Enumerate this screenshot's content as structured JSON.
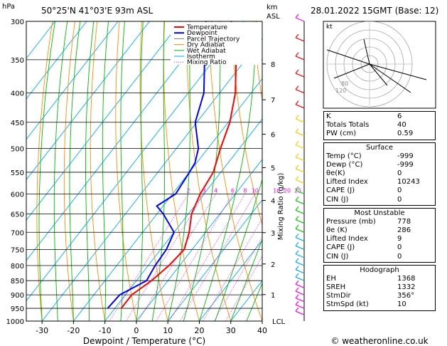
{
  "header": {
    "hpa_unit": "hPa",
    "location": "50°25'N  41°03'E  93m  ASL",
    "km_unit": "km",
    "asl_unit": "ASL",
    "date": "28.01.2022  15GMT  (Base: 12)"
  },
  "legend": [
    {
      "name": "Temperature",
      "color": "#ff0000",
      "style": "solid"
    },
    {
      "name": "Dewpoint",
      "color": "#0000ff",
      "style": "solid"
    },
    {
      "name": "Parcel Trajectory",
      "color": "#808080",
      "style": "solid"
    },
    {
      "name": "Dry Adiabat",
      "color": "#ff8c00",
      "style": "solid"
    },
    {
      "name": "Wet Adiabat",
      "color": "#00bb00",
      "style": "solid"
    },
    {
      "name": "Isotherm",
      "color": "#00aaff",
      "style": "solid"
    },
    {
      "name": "Mixing Ratio",
      "color": "#ff00ff",
      "style": "dotted"
    }
  ],
  "chart_data": {
    "type": "line",
    "title": "",
    "xlabel": "Dewpoint / Temperature (°C)",
    "ylabel": "",
    "right_axis_label": "Mixing Ratio (g/kg)",
    "xlim": [
      -35,
      40
    ],
    "ylim": [
      1000,
      300
    ],
    "y_scale": "log",
    "x_ticks": [
      -30,
      -20,
      -10,
      0,
      10,
      20,
      30,
      40
    ],
    "pressure_ticks": [
      300,
      350,
      400,
      450,
      500,
      550,
      600,
      650,
      700,
      750,
      800,
      850,
      900,
      950,
      1000
    ],
    "km_ticks": [
      {
        "label": "8",
        "p": 356
      },
      {
        "label": "7",
        "p": 411
      },
      {
        "label": "6",
        "p": 472
      },
      {
        "label": "5",
        "p": 540
      },
      {
        "label": "4",
        "p": 616
      },
      {
        "label": "3",
        "p": 701
      },
      {
        "label": "2",
        "p": 795
      },
      {
        "label": "1",
        "p": 899
      }
    ],
    "lcl": {
      "label": "LCL",
      "p": 1000
    },
    "mixing_ratio_labels": [
      "2",
      "3",
      "4",
      "6",
      "8",
      "10",
      "16",
      "20",
      "25"
    ],
    "mixing_ratio_label_p": 600,
    "series": [
      {
        "name": "Temperature",
        "color": "#ff0000",
        "points": [
          [
            -8.0,
            950
          ],
          [
            -8.0,
            900
          ],
          [
            -5.2,
            850
          ],
          [
            -3.4,
            800
          ],
          [
            -2.5,
            750
          ],
          [
            -5.2,
            700
          ],
          [
            -9.0,
            650
          ],
          [
            -11.2,
            600
          ],
          [
            -12.4,
            550
          ],
          [
            -16.0,
            500
          ],
          [
            -19.5,
            450
          ],
          [
            -25.0,
            400
          ],
          [
            -33.0,
            350
          ],
          [
            -44.0,
            300
          ]
        ]
      },
      {
        "name": "Dewpoint",
        "color": "#0000ff",
        "points": [
          [
            -12.3,
            950
          ],
          [
            -11.8,
            900
          ],
          [
            -6.8,
            850
          ],
          [
            -7.8,
            800
          ],
          [
            -8.2,
            750
          ],
          [
            -10.0,
            700
          ],
          [
            -18.0,
            650
          ],
          [
            -22.0,
            630
          ],
          [
            -19.0,
            600
          ],
          [
            -20.0,
            550
          ],
          [
            -20.5,
            530
          ],
          [
            -23.0,
            500
          ],
          [
            -30.5,
            450
          ],
          [
            -35.0,
            400
          ],
          [
            -43.0,
            350
          ],
          [
            -48.0,
            340
          ],
          [
            -52.0,
            300
          ]
        ]
      }
    ]
  },
  "hodograph": {
    "unit_label": "kt",
    "ring_labels": [
      "80",
      "120"
    ]
  },
  "indices": [
    {
      "label": "K",
      "value": "6"
    },
    {
      "label": "Totals Totals",
      "value": "40"
    },
    {
      "label": "PW (cm)",
      "value": "0.59"
    }
  ],
  "surface": {
    "title": "Surface",
    "rows": [
      {
        "label": "Temp (°C)",
        "value": "-999"
      },
      {
        "label": "Dewp (°C)",
        "value": "-999"
      },
      {
        "label": "θe(K)",
        "value": "0"
      },
      {
        "label": "Lifted Index",
        "value": "10243"
      },
      {
        "label": "CAPE (J)",
        "value": "0"
      },
      {
        "label": "CIN (J)",
        "value": "0"
      }
    ]
  },
  "most_unstable": {
    "title": "Most Unstable",
    "rows": [
      {
        "label": "Pressure (mb)",
        "value": "778"
      },
      {
        "label": "θe (K)",
        "value": "286"
      },
      {
        "label": "Lifted Index",
        "value": "9"
      },
      {
        "label": "CAPE (J)",
        "value": "0"
      },
      {
        "label": "CIN (J)",
        "value": "0"
      }
    ]
  },
  "hodo_table": {
    "title": "Hodograph",
    "rows": [
      {
        "label": "EH",
        "value": "1368"
      },
      {
        "label": "SREH",
        "value": "1332"
      },
      {
        "label": "StmDir",
        "value": "356°"
      },
      {
        "label": "StmSpd (kt)",
        "value": "10"
      }
    ]
  },
  "footer": {
    "copyright": "© weatheronline.co.uk"
  },
  "wind_barb_colors": [
    "#ff00ff",
    "#00aaff",
    "#00cc00",
    "#ffcc00",
    "#ff0000"
  ]
}
